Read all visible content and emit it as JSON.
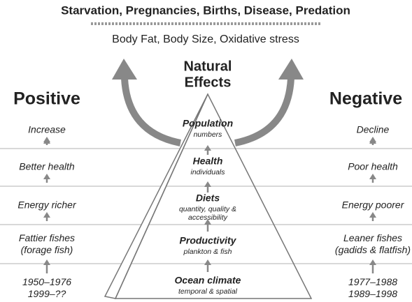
{
  "header": {
    "title": "Starvation, Pregnancies, Births, Disease, Predation",
    "subtitle": "Body Fat, Body Size, Oxidative stress"
  },
  "center": {
    "title_lines": [
      "Natural",
      "Effects"
    ]
  },
  "levels": [
    {
      "title": "Population",
      "details": [
        "numbers"
      ]
    },
    {
      "title": "Health",
      "details": [
        "individuals"
      ]
    },
    {
      "title": "Diets",
      "details": [
        "quantity, quality &",
        "accessibility"
      ]
    },
    {
      "title": "Productivity",
      "details": [
        "plankton & fish"
      ]
    },
    {
      "title": "Ocean climate",
      "details": [
        "temporal & spatial"
      ]
    }
  ],
  "left": {
    "title": "Positive",
    "items": [
      [
        "Increase"
      ],
      [
        "Better health"
      ],
      [
        "Energy richer"
      ],
      [
        "Fattier fishes",
        "(forage fish)"
      ],
      [
        "1950–1976",
        "1999–??"
      ]
    ]
  },
  "right": {
    "title": "Negative",
    "items": [
      [
        "Decline"
      ],
      [
        "Poor health"
      ],
      [
        "Energy poorer"
      ],
      [
        "Leaner fishes",
        "(gadids & flatfish)"
      ],
      [
        "1977–1988",
        "1989–1998"
      ]
    ]
  }
}
